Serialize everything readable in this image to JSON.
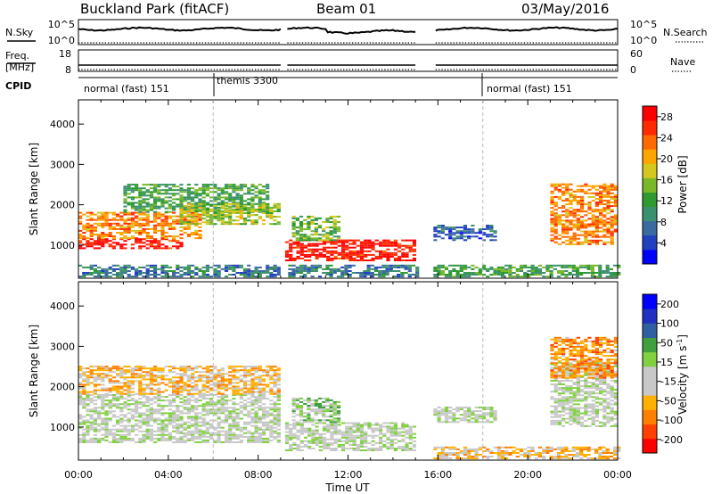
{
  "header": {
    "station": "Buckland Park (fitACF)",
    "beam": "Beam 01",
    "date": "03/May/2016"
  },
  "panels": {
    "nsky_label": "N.Sky",
    "nsearch_label": "N.Search",
    "nsky_ticks": [
      "10^5",
      "10^0"
    ],
    "nsearch_ticks": [
      "10^5",
      "10^0"
    ],
    "freq_label_1": "Freq.",
    "freq_label_2": "[MHz]",
    "freq_ticks": [
      "18",
      "8"
    ],
    "nave_label": "Nave",
    "nave_ticks": [
      "60",
      "0"
    ],
    "cpid_label": "CPID",
    "cpid_modes": [
      {
        "label": "normal (fast) 151",
        "start_hour": 0
      },
      {
        "label": "themis 3300",
        "start_hour": 6
      },
      {
        "label": "normal (fast) 151",
        "start_hour": 18
      }
    ]
  },
  "chart_data": [
    {
      "type": "heatmap",
      "name": "power",
      "ylabel": "Slant Range [km]",
      "xlabel": "",
      "xlim": [
        0,
        24
      ],
      "ylim": [
        180,
        4600
      ],
      "yticks": [
        "1000",
        "2000",
        "3000",
        "4000"
      ],
      "xticks": [
        "00:00",
        "04:00",
        "08:00",
        "12:00",
        "16:00",
        "20:00",
        "00:00"
      ],
      "colorbar": {
        "label": "Power [dB]",
        "ticks": [
          "4",
          "8",
          "12",
          "16",
          "20",
          "24",
          "28"
        ],
        "range": [
          0,
          30
        ],
        "colors": [
          "#0000ff",
          "#2040c0",
          "#3a6aa0",
          "#3c9070",
          "#2e9a30",
          "#7ab82a",
          "#d4c81e",
          "#ffa500",
          "#ff6a00",
          "#ff2a00",
          "#ff0000"
        ]
      },
      "features": [
        {
          "t0": 0.0,
          "t1": 4.5,
          "r0": 900,
          "r1": 1150,
          "value": 28
        },
        {
          "t0": 0.0,
          "t1": 5.5,
          "r0": 1150,
          "r1": 1800,
          "value": 22
        },
        {
          "t0": 2.0,
          "t1": 8.5,
          "r0": 1800,
          "r1": 2500,
          "value": 12
        },
        {
          "t0": 4.5,
          "t1": 9.0,
          "r0": 1500,
          "r1": 2000,
          "value": 16
        },
        {
          "t0": 0.0,
          "t1": 15.0,
          "r0": 200,
          "r1": 500,
          "value": 8
        },
        {
          "t0": 9.2,
          "t1": 15.0,
          "r0": 600,
          "r1": 1100,
          "value": 28
        },
        {
          "t0": 9.5,
          "t1": 11.5,
          "r0": 1100,
          "r1": 1700,
          "value": 14
        },
        {
          "t0": 15.8,
          "t1": 18.5,
          "r0": 1100,
          "r1": 1500,
          "value": 6
        },
        {
          "t0": 15.8,
          "t1": 24.0,
          "r0": 200,
          "r1": 500,
          "value": 12
        },
        {
          "t0": 21.0,
          "t1": 24.0,
          "r0": 1000,
          "r1": 2500,
          "value": 22
        }
      ]
    },
    {
      "type": "heatmap",
      "name": "velocity",
      "ylabel": "Slant Range [km]",
      "xlabel": "Time UT",
      "xlim": [
        0,
        24
      ],
      "ylim": [
        180,
        4600
      ],
      "yticks": [
        "1000",
        "2000",
        "3000",
        "4000"
      ],
      "xticks": [
        "00:00",
        "04:00",
        "08:00",
        "12:00",
        "16:00",
        "20:00",
        "00:00"
      ],
      "colorbar": {
        "label_main": "Velocity [m s",
        "label_sup": "-1",
        "label_end": "]",
        "ticks": [
          "200",
          "100",
          "50",
          "15",
          "-15",
          "-50",
          "-100",
          "-200"
        ],
        "range": [
          -250,
          250
        ],
        "colors": [
          "#ff0000",
          "#ff4000",
          "#ff8000",
          "#ffb000",
          "#c8c8c8",
          "#c8c8c8",
          "#80d040",
          "#40a040",
          "#3060a0",
          "#2030c0",
          "#0000ff"
        ]
      },
      "features": [
        {
          "t0": 0.0,
          "t1": 9.0,
          "r0": 600,
          "r1": 1800,
          "value": 0
        },
        {
          "t0": 0.0,
          "t1": 9.0,
          "r0": 1800,
          "r1": 2500,
          "value": -80
        },
        {
          "t0": 9.2,
          "t1": 15.0,
          "r0": 400,
          "r1": 1100,
          "value": 0
        },
        {
          "t0": 9.5,
          "t1": 11.5,
          "r0": 1100,
          "r1": 1700,
          "value": 40
        },
        {
          "t0": 15.8,
          "t1": 18.5,
          "r0": 1100,
          "r1": 1500,
          "value": 0
        },
        {
          "t0": 15.8,
          "t1": 24.0,
          "r0": 200,
          "r1": 500,
          "value": -80
        },
        {
          "t0": 21.0,
          "t1": 24.0,
          "r0": 1000,
          "r1": 2600,
          "value": 0
        },
        {
          "t0": 21.0,
          "t1": 24.0,
          "r0": 2200,
          "r1": 3200,
          "value": -120
        }
      ]
    }
  ]
}
